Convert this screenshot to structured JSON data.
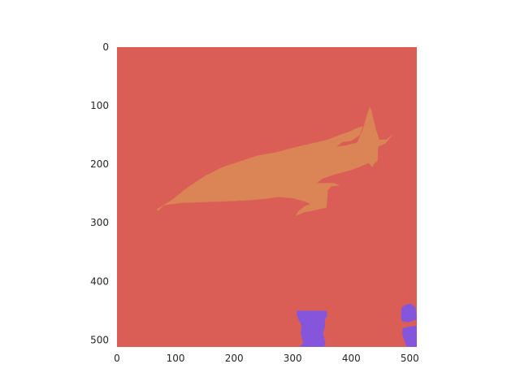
{
  "chart_data": {
    "type": "heatmap",
    "title": "",
    "xlabel": "",
    "ylabel": "",
    "xlim": [
      0,
      512
    ],
    "ylim": [
      512,
      0
    ],
    "x_ticks": [
      0,
      100,
      200,
      300,
      400,
      500
    ],
    "y_ticks": [
      0,
      100,
      200,
      300,
      400,
      500
    ],
    "grid": false,
    "legend": "none",
    "classes": [
      {
        "id": 0,
        "color": "#db5e56"
      },
      {
        "id": 1,
        "color": "#db8456"
      },
      {
        "id": 2,
        "color": "#8556db"
      }
    ],
    "regions": [
      {
        "class": 1,
        "points": [
          [
            68,
            277
          ],
          [
            95,
            260
          ],
          [
            120,
            240
          ],
          [
            150,
            220
          ],
          [
            180,
            205
          ],
          [
            210,
            195
          ],
          [
            240,
            185
          ],
          [
            270,
            180
          ],
          [
            300,
            172
          ],
          [
            330,
            165
          ],
          [
            360,
            158
          ],
          [
            380,
            150
          ],
          [
            395,
            145
          ],
          [
            410,
            138
          ],
          [
            420,
            135
          ],
          [
            415,
            150
          ],
          [
            400,
            160
          ],
          [
            385,
            162
          ],
          [
            375,
            170
          ],
          [
            390,
            168
          ],
          [
            410,
            163
          ],
          [
            420,
            140
          ],
          [
            428,
            112
          ],
          [
            432,
            102
          ],
          [
            435,
            110
          ],
          [
            442,
            140
          ],
          [
            448,
            158
          ],
          [
            460,
            158
          ],
          [
            472,
            148
          ],
          [
            458,
            165
          ],
          [
            446,
            170
          ],
          [
            445,
            195
          ],
          [
            440,
            198
          ],
          [
            436,
            205
          ],
          [
            430,
            198
          ],
          [
            400,
            210
          ],
          [
            370,
            218
          ],
          [
            350,
            225
          ],
          [
            342,
            232
          ],
          [
            370,
            232
          ],
          [
            380,
            236
          ],
          [
            365,
            238
          ],
          [
            360,
            245
          ],
          [
            358,
            274
          ],
          [
            345,
            277
          ],
          [
            332,
            280
          ],
          [
            320,
            282
          ],
          [
            305,
            288
          ],
          [
            310,
            280
          ],
          [
            320,
            272
          ],
          [
            330,
            268
          ],
          [
            322,
            264
          ],
          [
            300,
            258
          ],
          [
            276,
            256
          ],
          [
            255,
            259
          ],
          [
            232,
            261
          ],
          [
            200,
            263
          ],
          [
            170,
            264
          ],
          [
            140,
            265
          ],
          [
            110,
            266
          ],
          [
            80,
            270
          ],
          [
            70,
            280
          ]
        ]
      },
      {
        "class": 2,
        "points": [
          [
            307,
            450
          ],
          [
            358,
            450
          ],
          [
            359,
            460
          ],
          [
            355,
            465
          ],
          [
            355,
            478
          ],
          [
            352,
            490
          ],
          [
            356,
            505
          ],
          [
            354,
            512
          ],
          [
            312,
            512
          ],
          [
            318,
            505
          ],
          [
            314,
            490
          ],
          [
            315,
            475
          ],
          [
            310,
            465
          ],
          [
            307,
            458
          ]
        ]
      },
      {
        "class": 2,
        "points": [
          [
            486,
            445
          ],
          [
            492,
            440
          ],
          [
            502,
            438
          ],
          [
            510,
            445
          ],
          [
            512,
            465
          ],
          [
            498,
            470
          ],
          [
            486,
            468
          ],
          [
            485,
            455
          ]
        ]
      },
      {
        "class": 2,
        "points": [
          [
            488,
            480
          ],
          [
            500,
            477
          ],
          [
            512,
            476
          ],
          [
            512,
            512
          ],
          [
            495,
            512
          ],
          [
            490,
            500
          ],
          [
            487,
            490
          ]
        ]
      }
    ]
  }
}
